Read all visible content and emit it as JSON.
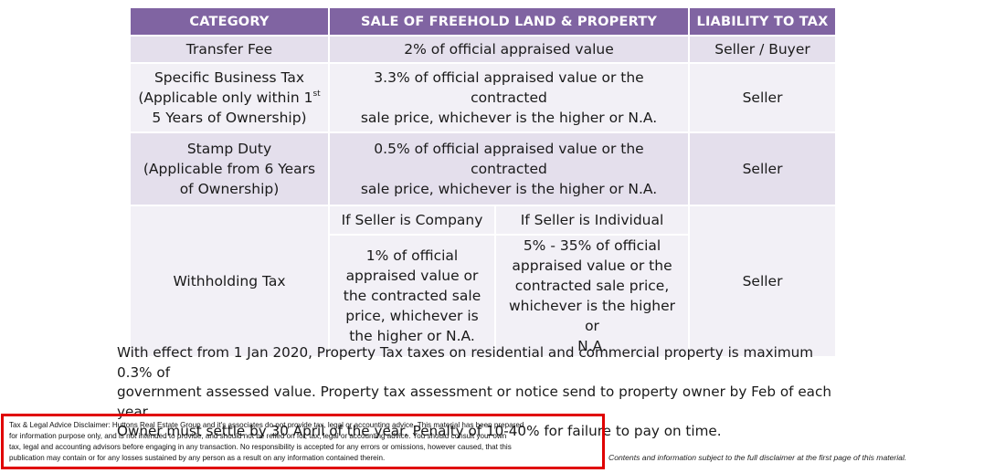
{
  "table": {
    "headers": {
      "category": "CATEGORY",
      "sale": "SALE OF FREEHOLD LAND & PROPERTY",
      "liability": "LIABILITY TO TAX"
    },
    "transfer_fee": {
      "category": "Transfer Fee",
      "sale": "2% of official appraised value",
      "liability": "Seller / Buyer"
    },
    "specific_business_tax": {
      "category_line1": "Specific Business Tax",
      "category_line2_pre": "(Applicable only within 1",
      "category_line2_sup": "st",
      "category_line3": "5 Years of Ownership)",
      "sale_line1": "3.3% of official appraised value or the contracted",
      "sale_line2": "sale price, whichever is the higher or N.A.",
      "liability": "Seller"
    },
    "stamp_duty": {
      "category_line1": "Stamp Duty",
      "category_line2": "(Applicable from 6 Years",
      "category_line3": "of Ownership)",
      "sale_line1": "0.5% of official appraised value or the contracted",
      "sale_line2": "sale price, whichever is the higher or N.A.",
      "liability": "Seller"
    },
    "withholding_tax": {
      "category": "Withholding Tax",
      "company_header": "If Seller is Company",
      "individual_header": "If Seller is Individual",
      "company_lines": [
        "1% of official",
        "appraised value or",
        "the contracted sale",
        "price, whichever is",
        "the higher or N.A."
      ],
      "individual_lines": [
        "5% - 35% of official",
        "appraised value or the",
        "contracted sale price,",
        "whichever is the higher or",
        "N.A."
      ],
      "liability": "Seller"
    }
  },
  "note_lines": [
    "With effect from 1 Jan 2020, Property Tax taxes on residential and commercial property is maximum 0.3% of",
    "government assessed value.  Property tax assessment or notice send to property owner by Feb of each year.",
    "Owner must settle by 30 April of the year.  Penalty of 10-40% for failure to pay on time."
  ],
  "disclaimer_lines": [
    "Tax & Legal Advice Disclaimer:  Huttons Real Estate Group and it's associates do not provide tax, legal or accounting advice.  This material has been prepared",
    "for information purpose only, and is not intended to provide, and should not be relied on for, tax, legal or accounting advice.  You should consult your own",
    "tax, legal and accounting advisors before engaging in any transaction.  No responsibility is accepted for any errors or omissions, however caused, that this",
    "publication may contain or for any losses sustained by any person as a result on any information contained therein."
  ],
  "footer_note": "Contents and information subject to the full disclaimer at the first page of this material.",
  "colors": {
    "header": "#8064a2",
    "row_shade": "#e4dfec",
    "row_light": "#f2f0f6",
    "disclaimer_border": "#e00000"
  }
}
